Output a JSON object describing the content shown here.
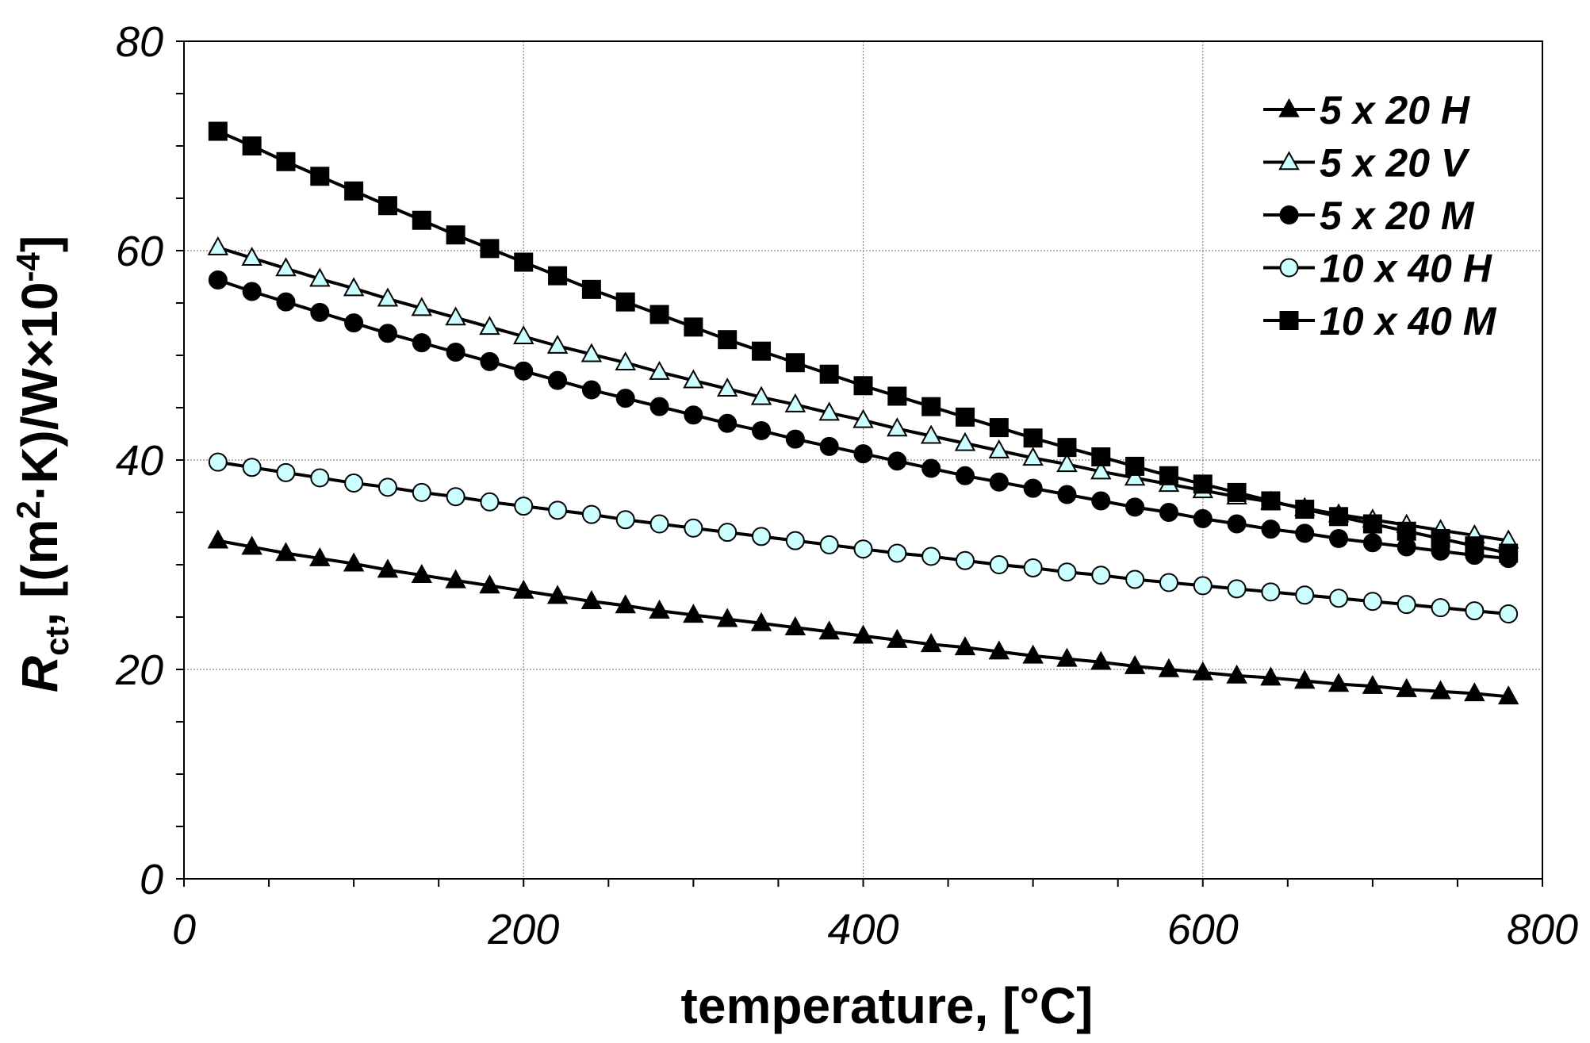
{
  "chart_data": {
    "type": "line",
    "title": "",
    "xlabel": "temperature, [°C]",
    "ylabel": {
      "symbol": "R",
      "subscript": "ct",
      "unit_part1": ", [(m",
      "unit_sup": "2",
      "unit_part2": "·K)/W×10",
      "unit_sup2": "-4",
      "unit_part3": "]"
    },
    "xlim": [
      0,
      800
    ],
    "ylim": [
      0,
      80
    ],
    "xticks": [
      "0",
      "200",
      "400",
      "600",
      "800"
    ],
    "yticks": [
      "0",
      "20",
      "40",
      "60",
      "80"
    ],
    "grid": true,
    "legend_position": "top-right",
    "x": [
      20,
      40,
      60,
      80,
      100,
      120,
      140,
      160,
      180,
      200,
      220,
      240,
      260,
      280,
      300,
      320,
      340,
      360,
      380,
      400,
      420,
      440,
      460,
      480,
      500,
      520,
      540,
      560,
      580,
      600,
      620,
      640,
      660,
      680,
      700,
      720,
      740,
      760,
      780
    ],
    "series": [
      {
        "name": "5 x 20 H",
        "marker": "triangle",
        "fill": "#000000",
        "values": [
          32.3,
          31.7,
          31.1,
          30.6,
          30.1,
          29.5,
          29.0,
          28.5,
          28.0,
          27.5,
          27.0,
          26.5,
          26.1,
          25.6,
          25.2,
          24.8,
          24.4,
          24.0,
          23.6,
          23.2,
          22.8,
          22.4,
          22.1,
          21.7,
          21.3,
          21.0,
          20.7,
          20.3,
          20.0,
          19.7,
          19.4,
          19.2,
          18.9,
          18.6,
          18.4,
          18.1,
          17.9,
          17.7,
          17.4
        ]
      },
      {
        "name": "5 x 20 V",
        "marker": "triangle",
        "fill": "#ccffff",
        "values": [
          60.3,
          59.3,
          58.3,
          57.3,
          56.4,
          55.4,
          54.5,
          53.6,
          52.7,
          51.8,
          50.9,
          50.1,
          49.3,
          48.4,
          47.6,
          46.8,
          46.0,
          45.3,
          44.5,
          43.8,
          43.0,
          42.3,
          41.6,
          40.9,
          40.2,
          39.6,
          38.9,
          38.3,
          37.7,
          37.1,
          36.5,
          36.0,
          35.4,
          34.8,
          34.3,
          33.8,
          33.3,
          32.8,
          32.3
        ]
      },
      {
        "name": "5 x 20 M",
        "marker": "circle",
        "fill": "#000000",
        "values": [
          57.2,
          56.1,
          55.1,
          54.1,
          53.1,
          52.1,
          51.2,
          50.3,
          49.4,
          48.5,
          47.6,
          46.7,
          45.9,
          45.1,
          44.3,
          43.5,
          42.8,
          42.0,
          41.3,
          40.6,
          39.9,
          39.2,
          38.5,
          37.9,
          37.3,
          36.7,
          36.1,
          35.5,
          35.0,
          34.4,
          33.9,
          33.4,
          33.0,
          32.5,
          32.1,
          31.7,
          31.3,
          30.9,
          30.6
        ]
      },
      {
        "name": "10 x 40 H",
        "marker": "circle",
        "fill": "#ccffff",
        "values": [
          39.8,
          39.3,
          38.8,
          38.3,
          37.8,
          37.4,
          36.9,
          36.5,
          36.0,
          35.6,
          35.2,
          34.8,
          34.3,
          33.9,
          33.5,
          33.1,
          32.7,
          32.3,
          31.9,
          31.5,
          31.1,
          30.8,
          30.4,
          30.0,
          29.7,
          29.3,
          29.0,
          28.6,
          28.3,
          28.0,
          27.7,
          27.4,
          27.1,
          26.8,
          26.5,
          26.2,
          25.9,
          25.6,
          25.3
        ]
      },
      {
        "name": "10 x 40 M",
        "marker": "square",
        "fill": "#000000",
        "values": [
          71.4,
          70.0,
          68.5,
          67.1,
          65.7,
          64.3,
          62.9,
          61.5,
          60.2,
          58.9,
          57.6,
          56.3,
          55.1,
          53.9,
          52.7,
          51.5,
          50.4,
          49.3,
          48.2,
          47.1,
          46.1,
          45.1,
          44.1,
          43.1,
          42.1,
          41.2,
          40.3,
          39.4,
          38.5,
          37.7,
          36.9,
          36.1,
          35.3,
          34.6,
          33.9,
          33.2,
          32.5,
          31.8,
          31.1
        ]
      }
    ]
  }
}
